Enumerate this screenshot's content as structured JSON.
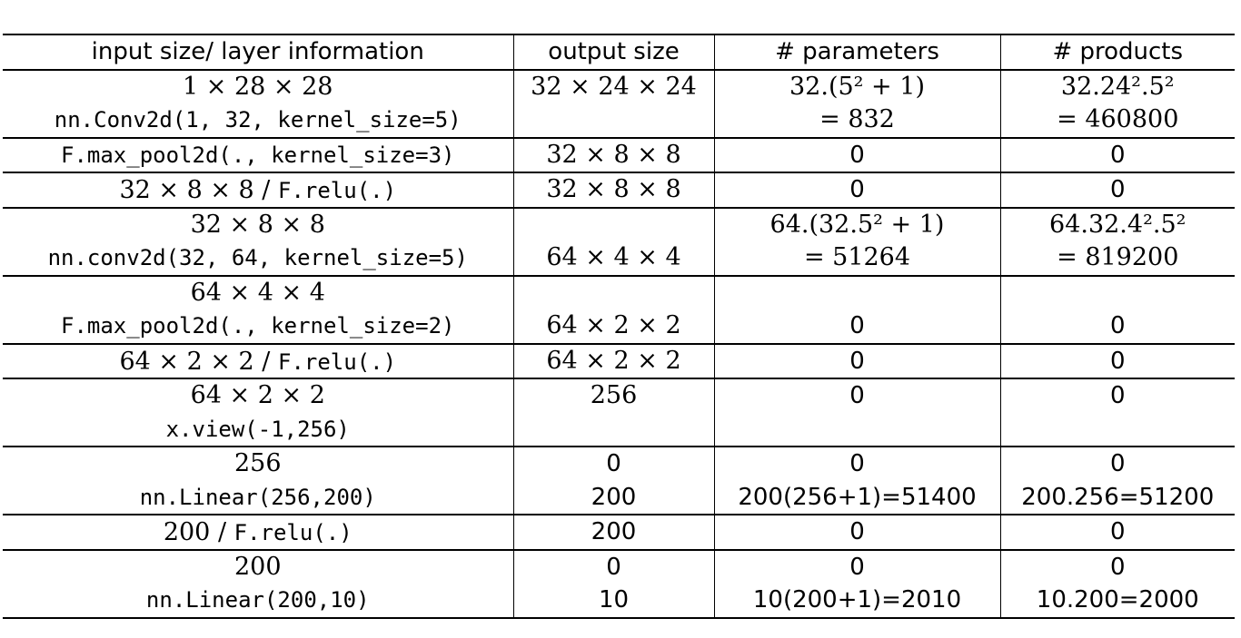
{
  "headers": [
    "input size/ layer information",
    "output size",
    "# parameters",
    "# products"
  ],
  "rows": [
    {
      "input": [
        "1 × 28 × 28",
        "nn.Conv2d(1, 32, kernel_size=5)"
      ],
      "output": [
        "32 × 24 × 24"
      ],
      "params": [
        "32.(5² + 1)",
        "= 832"
      ],
      "products": [
        "32.24².5²",
        "= 460800"
      ]
    },
    {
      "input": [
        "F.max_pool2d(., kernel_size=3)"
      ],
      "output": [
        "32 × 8 × 8"
      ],
      "params": [
        "0"
      ],
      "products": [
        "0"
      ]
    },
    {
      "input_dim": "32 × 8 × 8 / ",
      "input_code": "F.relu(.)",
      "output": [
        "32 × 8 × 8"
      ],
      "params": [
        "0"
      ],
      "products": [
        "0"
      ]
    },
    {
      "input": [
        "32 × 8 × 8",
        "nn.conv2d(32, 64, kernel_size=5)"
      ],
      "output": [
        "64 × 4 × 4"
      ],
      "params": [
        "64.(32.5² + 1)",
        "= 51264"
      ],
      "products": [
        "64.32.4².5²",
        "= 819200"
      ]
    },
    {
      "input": [
        "64 × 4 × 4",
        "F.max_pool2d(., kernel_size=2)"
      ],
      "output": [
        "64 × 2 × 2"
      ],
      "params": [
        "0"
      ],
      "products": [
        "0"
      ]
    },
    {
      "input_dim": "64 × 2 × 2 / ",
      "input_code": "F.relu(.)",
      "output": [
        "64 × 2 × 2"
      ],
      "params": [
        "0"
      ],
      "products": [
        "0"
      ]
    },
    {
      "input": [
        "64 × 2 × 2",
        "x.view(-1,256)"
      ],
      "output": [
        "256"
      ],
      "params": [
        "0"
      ],
      "products": [
        "0"
      ]
    },
    {
      "input": [
        "256",
        "nn.Linear(256,200)"
      ],
      "output": [
        "0",
        "200"
      ],
      "params": [
        "0",
        "200(256+1)=51400"
      ],
      "products": [
        "0",
        "200.256=51200"
      ]
    },
    {
      "input_dim": "200 / ",
      "input_code": "F.relu(.)",
      "output": [
        "200"
      ],
      "params": [
        "0"
      ],
      "products": [
        "0"
      ]
    },
    {
      "input": [
        "200",
        "nn.Linear(200,10)"
      ],
      "output": [
        "0",
        "10"
      ],
      "params": [
        "0",
        "10(200+1)=2010"
      ],
      "products": [
        "0",
        "10.200=2000"
      ]
    }
  ]
}
